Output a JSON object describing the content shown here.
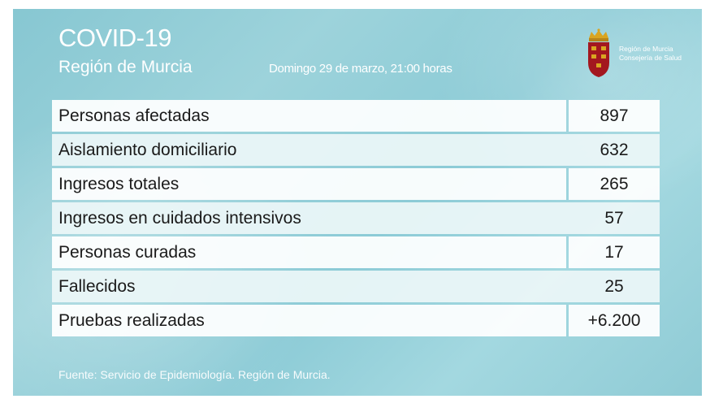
{
  "header": {
    "title": "COVID-19",
    "subtitle": "Región de Murcia",
    "date": "Domingo 29 de marzo, 21:00 horas"
  },
  "logo": {
    "name": "Región de Murcia",
    "department": "Consejería de Salud",
    "icon": "coat-of-arms-icon"
  },
  "stats": {
    "rows": [
      {
        "label": "Personas afectadas",
        "value": "897"
      },
      {
        "label": "Aislamiento domiciliario",
        "value": "632"
      },
      {
        "label": "Ingresos totales",
        "value": "265"
      },
      {
        "label": "Ingresos en cuidados intensivos",
        "value": "57"
      },
      {
        "label": "Personas curadas",
        "value": "17"
      },
      {
        "label": "Fallecidos",
        "value": "25"
      },
      {
        "label": "Pruebas realizadas",
        "value": "+6.200"
      }
    ]
  },
  "footer": {
    "source": "Fuente: Servicio de Epidemiología. Región de Murcia."
  },
  "colors": {
    "background": "#8fcbd5",
    "text_light": "#ffffff",
    "crest_red": "#a3171f",
    "crest_gold": "#d9a521"
  }
}
